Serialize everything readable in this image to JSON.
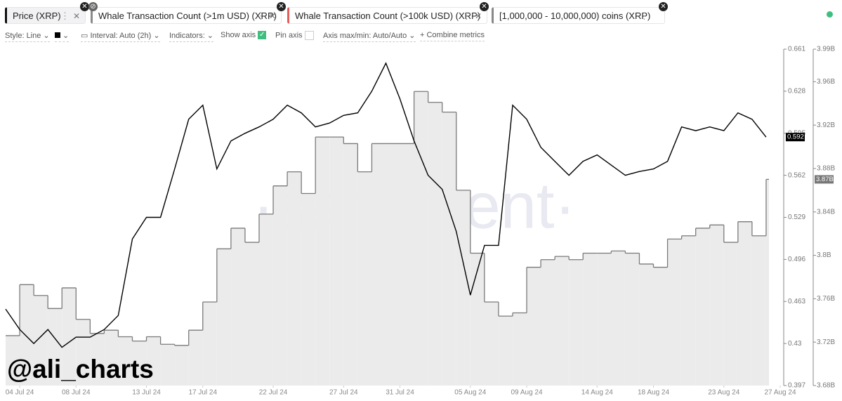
{
  "tabs": [
    "Whale Transaction Count (>1m USD) (XRP)",
    "Whale Transaction Count (>100k USD) (XRP)"
  ],
  "toolbar": {
    "style": "Style: Line",
    "interval": "Interval: Auto (2h)",
    "indicators": "Indicators:",
    "show_axis": "Show axis",
    "pin_axis": "Pin axis",
    "axis_range": "Axis max/min: Auto/Auto",
    "combine": "+ Combine metrics"
  },
  "watermark": "·santiment·",
  "credit": "@ali_charts",
  "chart_data": {
    "type": "line",
    "x": [
      "2024-07-03",
      "2024-07-04",
      "2024-07-05",
      "2024-07-06",
      "2024-07-07",
      "2024-07-08",
      "2024-07-09",
      "2024-07-10",
      "2024-07-11",
      "2024-07-12",
      "2024-07-13",
      "2024-07-14",
      "2024-07-15",
      "2024-07-16",
      "2024-07-17",
      "2024-07-18",
      "2024-07-19",
      "2024-07-20",
      "2024-07-21",
      "2024-07-22",
      "2024-07-23",
      "2024-07-24",
      "2024-07-25",
      "2024-07-26",
      "2024-07-27",
      "2024-07-28",
      "2024-07-29",
      "2024-07-30",
      "2024-07-31",
      "2024-08-01",
      "2024-08-02",
      "2024-08-03",
      "2024-08-04",
      "2024-08-05",
      "2024-08-06",
      "2024-08-07",
      "2024-08-08",
      "2024-08-09",
      "2024-08-10",
      "2024-08-11",
      "2024-08-12",
      "2024-08-13",
      "2024-08-14",
      "2024-08-15",
      "2024-08-16",
      "2024-08-17",
      "2024-08-18",
      "2024-08-19",
      "2024-08-20",
      "2024-08-21",
      "2024-08-22",
      "2024-08-23",
      "2024-08-24",
      "2024-08-25",
      "2024-08-26"
    ],
    "xlim": [
      "2024-07-03",
      "2024-08-27"
    ],
    "xticks": [
      {
        "value": "2024-07-04",
        "label": "04 Jul 24"
      },
      {
        "value": "2024-07-08",
        "label": "08 Jul 24"
      },
      {
        "value": "2024-07-13",
        "label": "13 Jul 24"
      },
      {
        "value": "2024-07-17",
        "label": "17 Jul 24"
      },
      {
        "value": "2024-07-22",
        "label": "22 Jul 24"
      },
      {
        "value": "2024-07-27",
        "label": "27 Jul 24"
      },
      {
        "value": "2024-07-31",
        "label": "31 Jul 24"
      },
      {
        "value": "2024-08-05",
        "label": "05 Aug 24"
      },
      {
        "value": "2024-08-09",
        "label": "09 Aug 24"
      },
      {
        "value": "2024-08-14",
        "label": "14 Aug 24"
      },
      {
        "value": "2024-08-18",
        "label": "18 Aug 24"
      },
      {
        "value": "2024-08-23",
        "label": "23 Aug 24"
      },
      {
        "value": "2024-08-27",
        "label": "27 Aug 24"
      }
    ],
    "ylim": [
      0.397,
      0.661
    ],
    "yticks": [
      0.397,
      0.43,
      0.463,
      0.496,
      0.529,
      0.562,
      0.595,
      0.628,
      0.661
    ],
    "y2lim": [
      3.68,
      3.99
    ],
    "y2ticks": [
      {
        "value": 3.68,
        "label": "3.68B"
      },
      {
        "value": 3.72,
        "label": "3.72B"
      },
      {
        "value": 3.76,
        "label": "3.76B"
      },
      {
        "value": 3.8,
        "label": "3.8B"
      },
      {
        "value": 3.84,
        "label": "3.84B"
      },
      {
        "value": 3.88,
        "label": "3.88B"
      },
      {
        "value": 3.92,
        "label": "3.92B"
      },
      {
        "value": 3.96,
        "label": "3.96B"
      },
      {
        "value": 3.99,
        "label": "3.99B"
      }
    ],
    "series": [
      {
        "name": "Price (XRP)",
        "color": "#000000",
        "style": "line",
        "values": [
          0.457,
          0.441,
          0.43,
          0.441,
          0.427,
          0.435,
          0.435,
          0.441,
          0.452,
          0.512,
          0.529,
          0.529,
          0.567,
          0.606,
          0.617,
          0.567,
          0.589,
          0.595,
          0.6,
          0.606,
          0.617,
          0.611,
          0.6,
          0.603,
          0.609,
          0.611,
          0.628,
          0.65,
          0.622,
          0.589,
          0.562,
          0.551,
          0.518,
          0.468,
          0.507,
          0.507,
          0.617,
          0.606,
          0.584,
          0.573,
          0.562,
          0.573,
          0.578,
          0.57,
          0.562,
          0.565,
          0.567,
          0.573,
          0.6,
          0.597,
          0.6,
          0.597,
          0.611,
          0.606,
          0.592
        ]
      },
      {
        "name": "[1,000,000 - 10,000,000) coins (XRP)",
        "color": "#7a7a7a",
        "style": "step-area",
        "axis": "y2",
        "values": [
          3.726,
          3.773,
          3.763,
          3.751,
          3.77,
          3.741,
          3.728,
          3.731,
          3.725,
          3.721,
          3.725,
          3.718,
          3.717,
          3.731,
          3.757,
          3.806,
          3.825,
          3.812,
          3.838,
          3.864,
          3.877,
          3.857,
          3.909,
          3.909,
          3.903,
          3.877,
          3.903,
          3.903,
          3.903,
          3.951,
          3.941,
          3.932,
          3.86,
          3.802,
          3.757,
          3.744,
          3.747,
          3.789,
          3.796,
          3.799,
          3.796,
          3.802,
          3.802,
          3.804,
          3.802,
          3.792,
          3.789,
          3.815,
          3.818,
          3.825,
          3.828,
          3.812,
          3.831,
          3.818,
          3.87
        ],
        "value_labels": [
          null,
          null,
          null,
          null,
          null,
          null,
          null,
          null,
          null,
          null,
          null,
          null,
          null,
          null,
          null,
          null,
          null,
          null,
          null,
          null,
          null,
          null,
          null,
          null,
          null,
          null,
          null,
          null,
          null,
          null,
          null,
          null,
          null,
          null,
          null,
          null,
          null,
          null,
          null,
          null,
          null,
          null,
          null,
          null,
          null,
          null,
          null,
          null,
          null,
          null,
          null,
          null,
          null,
          null,
          "3.87B"
        ]
      }
    ]
  }
}
